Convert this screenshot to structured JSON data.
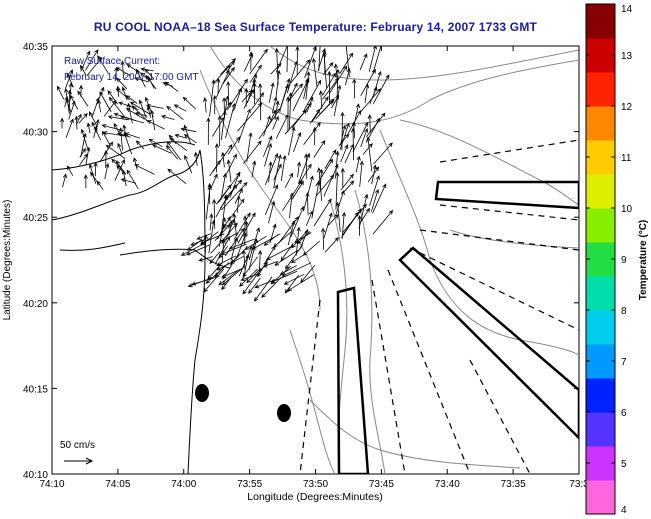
{
  "title": "RU COOL  NOAA–18  Sea Surface Temperature:  February 14, 2007 1733 GMT",
  "overlay": {
    "line1": "Raw Surface Current:",
    "line2": "February 14, 2007 17:00 GMT"
  },
  "scale_label": "50 cm/s",
  "x_axis": {
    "label": "Longitude (Degrees:Minutes)",
    "ticks": [
      "74:10",
      "74:05",
      "74:00",
      "73:55",
      "73:50",
      "73:45",
      "73:40",
      "73:35",
      "73:3"
    ]
  },
  "y_axis": {
    "label": "Latitude (Degrees:Minutes)",
    "ticks": [
      "40:35",
      "40:30",
      "40:25",
      "40:20",
      "40:15",
      "40:10"
    ]
  },
  "colorbar": {
    "label": "Temperature (°C)",
    "ticks": [
      "14",
      "13",
      "12",
      "11",
      "10",
      "9",
      "8",
      "7",
      "6",
      "5",
      "4"
    ],
    "min": 4,
    "max": 14,
    "colors": [
      "#ff66dd",
      "#cc33ff",
      "#5533ff",
      "#0022ff",
      "#0099ff",
      "#00ccee",
      "#00ddaa",
      "#22dd44",
      "#88ee00",
      "#ddee00",
      "#ffcc00",
      "#ff8800",
      "#ff2200",
      "#cc0000",
      "#880000"
    ]
  }
}
